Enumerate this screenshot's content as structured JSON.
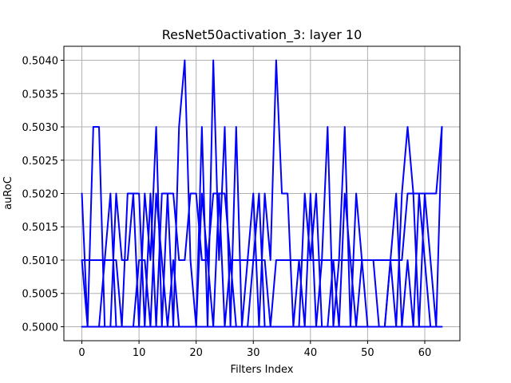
{
  "chart_data": {
    "type": "line",
    "title": "ResNet50activation_3: layer 10",
    "xlabel": "Filters Index",
    "ylabel": "auRoC",
    "xlim": [
      -3.15,
      66.15
    ],
    "ylim": [
      0.49979,
      0.50421
    ],
    "xticks": [
      0,
      10,
      20,
      30,
      40,
      50,
      60
    ],
    "xtick_labels": [
      "0",
      "10",
      "20",
      "30",
      "40",
      "50",
      "60"
    ],
    "yticks": [
      0.5,
      0.5005,
      0.501,
      0.5015,
      0.502,
      0.5025,
      0.503,
      0.5035,
      0.504
    ],
    "ytick_labels": [
      "0.5000",
      "0.5005",
      "0.5010",
      "0.5015",
      "0.5020",
      "0.5025",
      "0.5030",
      "0.5035",
      "0.5040"
    ],
    "grid": true,
    "line_color": "#0000ff",
    "x": [
      0,
      1,
      2,
      3,
      4,
      5,
      6,
      7,
      8,
      9,
      10,
      11,
      12,
      13,
      14,
      15,
      16,
      17,
      18,
      19,
      20,
      21,
      22,
      23,
      24,
      25,
      26,
      27,
      28,
      29,
      30,
      31,
      32,
      33,
      34,
      35,
      36,
      37,
      38,
      39,
      40,
      41,
      42,
      43,
      44,
      45,
      46,
      47,
      48,
      49,
      50,
      51,
      52,
      53,
      54,
      55,
      56,
      57,
      58,
      59,
      60,
      61,
      62,
      63
    ],
    "series": [
      {
        "values": [
          0.502,
          0.5,
          0.503,
          0.503,
          0.5,
          0.5,
          0.502,
          0.501,
          0.501,
          0.502,
          0.5,
          0.502,
          0.501,
          0.503,
          0.5,
          0.502,
          0.5,
          0.503,
          0.504,
          0.501,
          0.5,
          0.503,
          0.5,
          0.504,
          0.501,
          0.503,
          0.5,
          0.503,
          0.5,
          0.501,
          0.502,
          0.5,
          0.502,
          0.501,
          0.504,
          0.502,
          0.502,
          0.5,
          0.501,
          0.5,
          0.502,
          0.5,
          0.501,
          0.503,
          0.5,
          0.501,
          0.503,
          0.5,
          0.502,
          0.501,
          0.501,
          0.501,
          0.5,
          0.5,
          0.501,
          0.5,
          0.502,
          0.503,
          0.502,
          0.5,
          0.502,
          0.501,
          0.5,
          0.503
        ]
      },
      {
        "values": [
          0.501,
          0.501,
          0.501,
          0.501,
          0.501,
          0.501,
          0.501,
          0.5,
          0.502,
          0.502,
          0.502,
          0.5,
          0.502,
          0.5,
          0.502,
          0.502,
          0.502,
          0.501,
          0.501,
          0.502,
          0.502,
          0.501,
          0.501,
          0.502,
          0.502,
          0.5,
          0.501,
          0.501,
          0.501,
          0.501,
          0.501,
          0.501,
          0.501,
          0.5,
          0.501,
          0.501,
          0.501,
          0.501,
          0.501,
          0.501,
          0.501,
          0.501,
          0.501,
          0.501,
          0.501,
          0.501,
          0.501,
          0.501,
          0.501,
          0.501,
          0.501,
          0.501,
          0.501,
          0.501,
          0.501,
          0.501,
          0.501,
          0.502,
          0.502,
          0.502,
          0.502,
          0.502,
          0.502,
          0.503
        ]
      },
      {
        "values": [
          0.501,
          0.5,
          0.5,
          0.5,
          0.501,
          0.502,
          0.5,
          0.5,
          0.5,
          0.5,
          0.501,
          0.501,
          0.5,
          0.502,
          0.501,
          0.5,
          0.501,
          0.5,
          0.5,
          0.5,
          0.5,
          0.502,
          0.501,
          0.5,
          0.502,
          0.502,
          0.501,
          0.5,
          0.5,
          0.5,
          0.501,
          0.502,
          0.5,
          0.5,
          0.5,
          0.5,
          0.5,
          0.5,
          0.5,
          0.502,
          0.501,
          0.502,
          0.5,
          0.5,
          0.501,
          0.5,
          0.502,
          0.501,
          0.5,
          0.501,
          0.5,
          0.5,
          0.5,
          0.5,
          0.501,
          0.502,
          0.5,
          0.501,
          0.5,
          0.502,
          0.501,
          0.5,
          0.5,
          0.5
        ]
      },
      {
        "values": [
          0.5,
          0.5,
          0.5,
          0.5,
          0.5,
          0.5,
          0.5,
          0.5,
          0.5,
          0.5,
          0.5,
          0.5,
          0.5,
          0.5,
          0.5,
          0.5,
          0.5,
          0.5,
          0.5,
          0.5,
          0.5,
          0.5,
          0.5,
          0.5,
          0.5,
          0.5,
          0.5,
          0.5,
          0.5,
          0.5,
          0.5,
          0.5,
          0.5,
          0.5,
          0.5,
          0.5,
          0.5,
          0.5,
          0.5,
          0.5,
          0.5,
          0.5,
          0.5,
          0.5,
          0.5,
          0.5,
          0.5,
          0.5,
          0.5,
          0.5,
          0.5,
          0.5,
          0.5,
          0.5,
          0.5,
          0.5,
          0.5,
          0.5,
          0.5,
          0.5,
          0.5,
          0.5,
          0.5,
          0.5
        ]
      }
    ]
  }
}
